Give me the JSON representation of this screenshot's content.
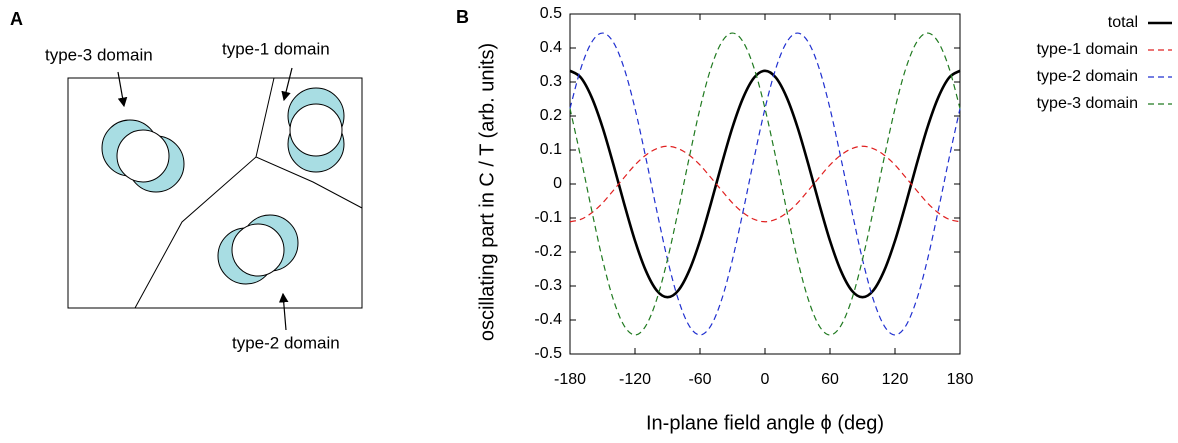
{
  "panels": {
    "a": "A",
    "b": "B"
  },
  "diagram": {
    "labels": [
      "type-3 domain",
      "type-1 domain",
      "type-2 domain"
    ]
  },
  "chart_data": {
    "type": "line",
    "xlabel": "In-plane field angle ϕ (deg)",
    "ylabel": "oscillating part in C / T (arb. units)",
    "x": [
      -180,
      -170,
      -160,
      -150,
      -140,
      -130,
      -120,
      -110,
      -100,
      -90,
      -80,
      -70,
      -60,
      -50,
      -40,
      -30,
      -20,
      -10,
      0,
      10,
      20,
      30,
      40,
      50,
      60,
      70,
      80,
      90,
      100,
      110,
      120,
      130,
      140,
      150,
      160,
      170,
      180
    ],
    "xlim": [
      -180,
      180
    ],
    "xticks": [
      -180,
      -120,
      -60,
      0,
      60,
      120,
      180
    ],
    "ylim": [
      -0.5,
      0.5
    ],
    "yticks": [
      -0.5,
      -0.4,
      -0.3,
      -0.2,
      -0.1,
      0,
      0.1,
      0.2,
      0.3,
      0.4,
      0.5
    ],
    "series": [
      {
        "name": "total",
        "color": "#000000",
        "dashed": false,
        "values": [
          0.333,
          0.313,
          0.255,
          0.167,
          0.058,
          -0.058,
          -0.167,
          -0.255,
          -0.313,
          -0.333,
          -0.313,
          -0.255,
          -0.167,
          -0.058,
          0.058,
          0.167,
          0.255,
          0.313,
          0.333,
          0.313,
          0.255,
          0.167,
          0.058,
          -0.058,
          -0.167,
          -0.255,
          -0.313,
          -0.333,
          -0.313,
          -0.255,
          -0.167,
          -0.058,
          0.058,
          0.167,
          0.255,
          0.313,
          0.333
        ]
      },
      {
        "name": "type-1 domain",
        "color": "#e02020",
        "dashed": true,
        "values": [
          -0.111,
          -0.104,
          -0.085,
          -0.056,
          -0.019,
          0.019,
          0.056,
          0.085,
          0.104,
          0.111,
          0.104,
          0.085,
          0.056,
          0.019,
          -0.019,
          -0.056,
          -0.085,
          -0.104,
          -0.111,
          -0.104,
          -0.085,
          -0.056,
          -0.019,
          0.019,
          0.056,
          0.085,
          0.104,
          0.111,
          0.104,
          0.085,
          0.056,
          0.019,
          -0.019,
          -0.056,
          -0.085,
          -0.104,
          -0.111
        ]
      },
      {
        "name": "type-2 domain",
        "color": "#2030d0",
        "dashed": true,
        "values": [
          0.222,
          0.34,
          0.417,
          0.444,
          0.417,
          0.34,
          0.222,
          0.077,
          -0.077,
          -0.222,
          -0.34,
          -0.417,
          -0.444,
          -0.417,
          -0.34,
          -0.222,
          -0.077,
          0.077,
          0.222,
          0.34,
          0.417,
          0.444,
          0.417,
          0.34,
          0.222,
          0.077,
          -0.077,
          -0.222,
          -0.34,
          -0.417,
          -0.444,
          -0.417,
          -0.34,
          -0.222,
          -0.077,
          0.077,
          0.222
        ]
      },
      {
        "name": "type-3 domain",
        "color": "#207a20",
        "dashed": true,
        "values": [
          0.222,
          0.077,
          -0.077,
          -0.222,
          -0.34,
          -0.417,
          -0.444,
          -0.417,
          -0.34,
          -0.222,
          -0.077,
          0.077,
          0.222,
          0.34,
          0.417,
          0.444,
          0.417,
          0.34,
          0.222,
          0.077,
          -0.077,
          -0.222,
          -0.34,
          -0.417,
          -0.444,
          -0.417,
          -0.34,
          -0.222,
          -0.077,
          0.077,
          0.222,
          0.34,
          0.417,
          0.444,
          0.417,
          0.34,
          0.222
        ]
      }
    ]
  }
}
